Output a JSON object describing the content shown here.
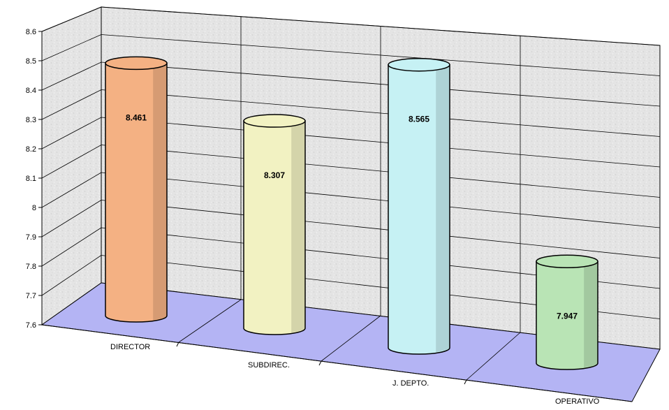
{
  "chart_data": {
    "type": "bar",
    "categories": [
      "DIRECTOR",
      "SUBDIREC.",
      "J. DEPTO.",
      "OPERATIVO"
    ],
    "values": [
      8.461,
      8.307,
      8.565,
      7.947
    ],
    "data_labels": [
      "8.461",
      "8.307",
      "8.565",
      "7.947"
    ],
    "y_ticks": [
      "7.6",
      "7.7",
      "7.8",
      "7.9",
      "8",
      "8.1",
      "8.2",
      "8.3",
      "8.4",
      "8.5",
      "8.6"
    ],
    "ylim": [
      7.6,
      8.6
    ],
    "grid": true,
    "legend": "none",
    "bar_colors": [
      "#f4b183",
      "#f2f2c2",
      "#c6f1f4",
      "#b9e4b5"
    ],
    "floor_color": "#b4b4f4",
    "wall_color": "#e6e6e6"
  }
}
